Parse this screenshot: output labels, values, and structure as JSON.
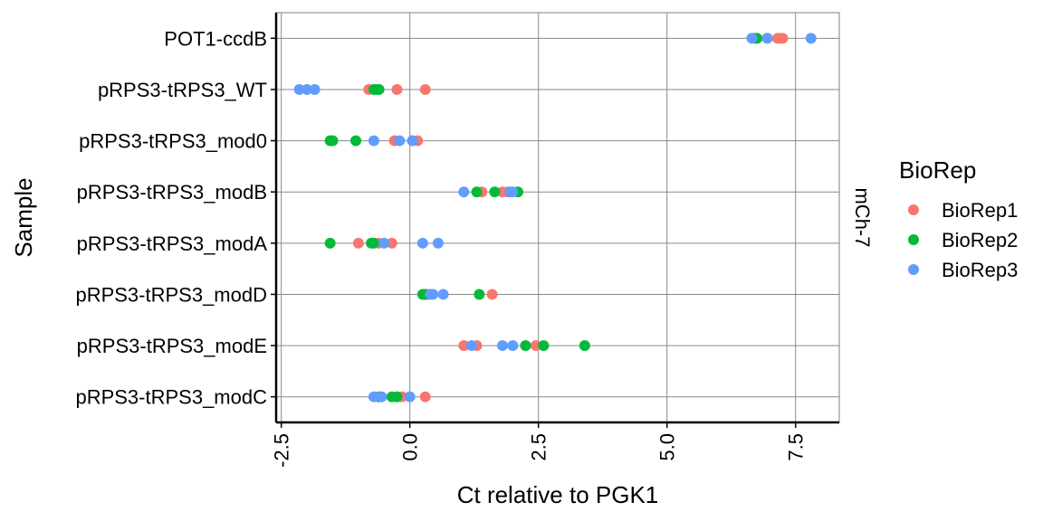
{
  "chart_data": {
    "type": "scatter",
    "xlabel": "Ct relative to PGK1",
    "ylabel": "Sample",
    "xlim": [
      -2.6,
      8.35
    ],
    "xticks": [
      -2.5,
      0,
      2.5,
      5,
      7.5
    ],
    "xtick_labels": [
      "-2.5",
      "0.0",
      "2.5",
      "5.0",
      "7.5"
    ],
    "categories": [
      "POT1-ccdB",
      "pRPS3-tRPS3_WT",
      "pRPS3-tRPS3_mod0",
      "pRPS3-tRPS3_modB",
      "pRPS3-tRPS3_modA",
      "pRPS3-tRPS3_modD",
      "pRPS3-tRPS3_modE",
      "pRPS3-tRPS3_modC"
    ],
    "facet_label": "mCh-7",
    "grid": true,
    "legend": {
      "title": "BioRep",
      "position": "right"
    },
    "series": [
      {
        "name": "BioRep1",
        "color": "#F8766D",
        "points": [
          [
            "POT1-ccdB",
            7.15
          ],
          [
            "POT1-ccdB",
            7.2
          ],
          [
            "POT1-ccdB",
            7.25
          ],
          [
            "pRPS3-tRPS3_WT",
            -0.8
          ],
          [
            "pRPS3-tRPS3_WT",
            -0.25
          ],
          [
            "pRPS3-tRPS3_WT",
            0.3
          ],
          [
            "pRPS3-tRPS3_mod0",
            -0.3
          ],
          [
            "pRPS3-tRPS3_mod0",
            0.15
          ],
          [
            "pRPS3-tRPS3_mod0",
            0.05
          ],
          [
            "pRPS3-tRPS3_modB",
            1.4
          ],
          [
            "pRPS3-tRPS3_modB",
            1.8
          ],
          [
            "pRPS3-tRPS3_modB",
            1.9
          ],
          [
            "pRPS3-tRPS3_modA",
            -1.0
          ],
          [
            "pRPS3-tRPS3_modA",
            -0.35
          ],
          [
            "pRPS3-tRPS3_modA",
            -0.6
          ],
          [
            "pRPS3-tRPS3_modD",
            1.6
          ],
          [
            "pRPS3-tRPS3_modD",
            0.3
          ],
          [
            "pRPS3-tRPS3_modD",
            0.35
          ],
          [
            "pRPS3-tRPS3_modE",
            1.05
          ],
          [
            "pRPS3-tRPS3_modE",
            1.3
          ],
          [
            "pRPS3-tRPS3_modE",
            2.45
          ],
          [
            "pRPS3-tRPS3_modC",
            -0.25
          ],
          [
            "pRPS3-tRPS3_modC",
            -0.15
          ],
          [
            "pRPS3-tRPS3_modC",
            0.3
          ]
        ]
      },
      {
        "name": "BioRep2",
        "color": "#00BA38",
        "points": [
          [
            "POT1-ccdB",
            6.7
          ],
          [
            "POT1-ccdB",
            6.75
          ],
          [
            "POT1-ccdB",
            6.95
          ],
          [
            "pRPS3-tRPS3_WT",
            -0.7
          ],
          [
            "pRPS3-tRPS3_WT",
            -0.6
          ],
          [
            "pRPS3-tRPS3_WT",
            -0.65
          ],
          [
            "pRPS3-tRPS3_mod0",
            -1.55
          ],
          [
            "pRPS3-tRPS3_mod0",
            -1.5
          ],
          [
            "pRPS3-tRPS3_mod0",
            -1.05
          ],
          [
            "pRPS3-tRPS3_modB",
            1.3
          ],
          [
            "pRPS3-tRPS3_modB",
            1.65
          ],
          [
            "pRPS3-tRPS3_modB",
            2.1
          ],
          [
            "pRPS3-tRPS3_modA",
            -1.55
          ],
          [
            "pRPS3-tRPS3_modA",
            -0.75
          ],
          [
            "pRPS3-tRPS3_modA",
            -0.7
          ],
          [
            "pRPS3-tRPS3_modD",
            0.25
          ],
          [
            "pRPS3-tRPS3_modD",
            0.3
          ],
          [
            "pRPS3-tRPS3_modD",
            1.35
          ],
          [
            "pRPS3-tRPS3_modE",
            2.25
          ],
          [
            "pRPS3-tRPS3_modE",
            2.6
          ],
          [
            "pRPS3-tRPS3_modE",
            3.4
          ],
          [
            "pRPS3-tRPS3_modC",
            -0.35
          ],
          [
            "pRPS3-tRPS3_modC",
            -0.25
          ],
          [
            "pRPS3-tRPS3_modC",
            -0.6
          ]
        ]
      },
      {
        "name": "BioRep3",
        "color": "#619CFF",
        "points": [
          [
            "POT1-ccdB",
            6.65
          ],
          [
            "POT1-ccdB",
            6.95
          ],
          [
            "POT1-ccdB",
            7.8
          ],
          [
            "pRPS3-tRPS3_WT",
            -2.15
          ],
          [
            "pRPS3-tRPS3_WT",
            -2.0
          ],
          [
            "pRPS3-tRPS3_WT",
            -1.85
          ],
          [
            "pRPS3-tRPS3_mod0",
            -0.7
          ],
          [
            "pRPS3-tRPS3_mod0",
            -0.2
          ],
          [
            "pRPS3-tRPS3_mod0",
            0.05
          ],
          [
            "pRPS3-tRPS3_modB",
            1.05
          ],
          [
            "pRPS3-tRPS3_modB",
            1.95
          ],
          [
            "pRPS3-tRPS3_modB",
            2.0
          ],
          [
            "pRPS3-tRPS3_modA",
            -0.5
          ],
          [
            "pRPS3-tRPS3_modA",
            0.25
          ],
          [
            "pRPS3-tRPS3_modA",
            0.55
          ],
          [
            "pRPS3-tRPS3_modD",
            0.4
          ],
          [
            "pRPS3-tRPS3_modD",
            0.45
          ],
          [
            "pRPS3-tRPS3_modD",
            0.65
          ],
          [
            "pRPS3-tRPS3_modE",
            1.2
          ],
          [
            "pRPS3-tRPS3_modE",
            1.8
          ],
          [
            "pRPS3-tRPS3_modE",
            2.0
          ],
          [
            "pRPS3-tRPS3_modC",
            -0.7
          ],
          [
            "pRPS3-tRPS3_modC",
            -0.55
          ],
          [
            "pRPS3-tRPS3_modC",
            0.0
          ]
        ]
      }
    ]
  }
}
